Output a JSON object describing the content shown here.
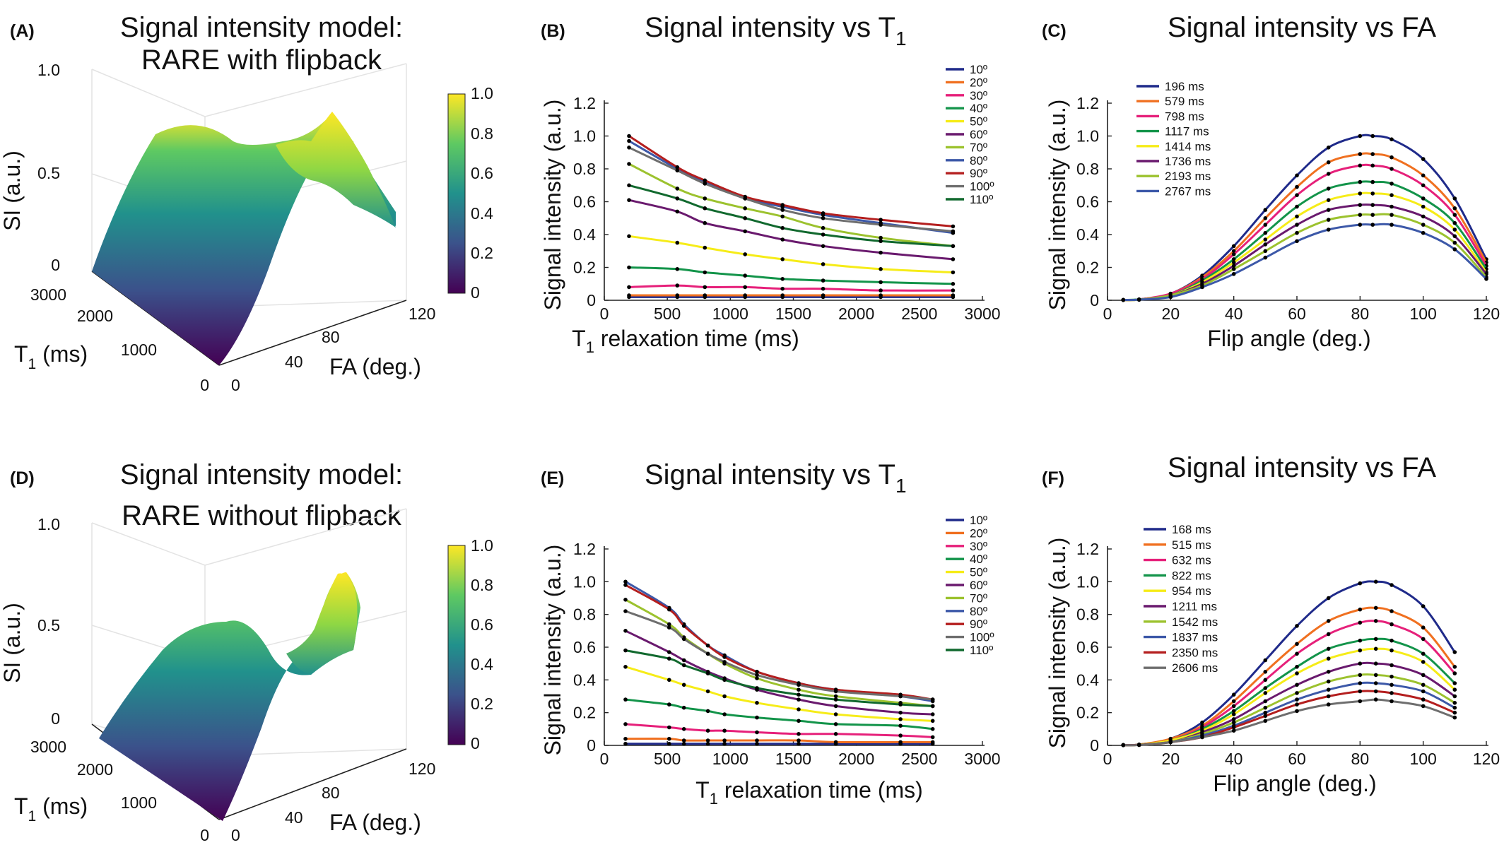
{
  "colors": {
    "deg10": "#1f2a8a",
    "deg20": "#f07020",
    "deg30": "#e6207a",
    "deg40": "#13944a",
    "deg50": "#f6ec18",
    "deg60": "#6a1a6e",
    "deg70": "#9cc22e",
    "deg80": "#3c58a8",
    "deg90": "#b41e1e",
    "deg100": "#6e6e6e",
    "deg110": "#11692e"
  },
  "panels": {
    "A": {
      "label": "(A)",
      "title_line1": "Signal intensity model:",
      "title_line2": "RARE with flipback",
      "zlabel": "SI (a.u.)",
      "ylabel_main": "T",
      "ylabel_sub": "1",
      "ylabel_unit": " (ms)",
      "xlabel": "FA (deg.)",
      "zticks": [
        "0",
        "0.5",
        "1.0"
      ],
      "t1ticks": [
        "0",
        "1000",
        "2000",
        "3000"
      ],
      "faticks": [
        "0",
        "40",
        "80",
        "120"
      ],
      "cbticks": [
        "0",
        "0.2",
        "0.4",
        "0.6",
        "0.8",
        "1.0"
      ]
    },
    "D": {
      "label": "(D)",
      "title_line1": "Signal intensity model:",
      "title_line2": "RARE without flipback",
      "zlabel": "SI (a.u.)",
      "ylabel_main": "T",
      "ylabel_sub": "1",
      "ylabel_unit": " (ms)",
      "xlabel": "FA (deg.)",
      "zticks": [
        "0",
        "0.5",
        "1.0"
      ],
      "t1ticks": [
        "0",
        "1000",
        "2000",
        "3000"
      ],
      "faticks": [
        "0",
        "40",
        "80",
        "120"
      ],
      "cbticks": [
        "0",
        "0.2",
        "0.4",
        "0.6",
        "0.8",
        "1.0"
      ]
    },
    "B": {
      "label": "(B)",
      "title": "Signal intensity vs T",
      "title_sub": "1",
      "xlabel_main": "T",
      "xlabel_sub": "1",
      "xlabel_rest": " relaxation time (ms)",
      "ylabel": "Signal intensity (a.u.)"
    },
    "E": {
      "label": "(E)",
      "title": "Signal intensity vs T",
      "title_sub": "1",
      "xlabel_main": "T",
      "xlabel_sub": "1",
      "xlabel_rest": " relaxation time (ms)",
      "ylabel": "Signal intensity (a.u.)"
    },
    "C": {
      "label": "(C)",
      "title": "Signal intensity vs FA",
      "xlabel": "Flip angle (deg.)",
      "ylabel": "Signal intensity (a.u.)"
    },
    "F": {
      "label": "(F)",
      "title": "Signal intensity vs FA",
      "xlabel": "Flip angle (deg.)",
      "ylabel": "Signal intensity (a.u.)"
    }
  },
  "chart_data": [
    {
      "id": "B",
      "type": "line",
      "xlim": [
        0,
        3000
      ],
      "ylim": [
        0,
        1.2
      ],
      "xticks": [
        0,
        500,
        1000,
        1500,
        2000,
        2500,
        3000
      ],
      "yticks": [
        0,
        0.2,
        0.4,
        0.6,
        0.8,
        1.0,
        1.2
      ],
      "x": [
        196,
        579,
        798,
        1117,
        1414,
        1736,
        2193,
        2767
      ],
      "series": [
        {
          "name": "10º",
          "color": "deg10",
          "values": [
            0.02,
            0.02,
            0.02,
            0.02,
            0.02,
            0.02,
            0.02,
            0.02
          ]
        },
        {
          "name": "20º",
          "color": "deg20",
          "values": [
            0.03,
            0.03,
            0.03,
            0.03,
            0.03,
            0.03,
            0.03,
            0.03
          ]
        },
        {
          "name": "30º",
          "color": "deg30",
          "values": [
            0.08,
            0.09,
            0.08,
            0.08,
            0.07,
            0.07,
            0.06,
            0.06
          ]
        },
        {
          "name": "40º",
          "color": "deg40",
          "values": [
            0.2,
            0.19,
            0.17,
            0.15,
            0.13,
            0.12,
            0.11,
            0.1
          ]
        },
        {
          "name": "50º",
          "color": "deg50",
          "values": [
            0.39,
            0.35,
            0.32,
            0.28,
            0.25,
            0.22,
            0.19,
            0.17
          ]
        },
        {
          "name": "60º",
          "color": "deg60",
          "values": [
            0.61,
            0.54,
            0.47,
            0.42,
            0.37,
            0.33,
            0.29,
            0.25
          ]
        },
        {
          "name": "70º",
          "color": "deg70",
          "values": [
            0.83,
            0.68,
            0.62,
            0.56,
            0.51,
            0.44,
            0.38,
            0.33
          ]
        },
        {
          "name": "80º",
          "color": "deg80",
          "values": [
            0.97,
            0.8,
            0.72,
            0.62,
            0.57,
            0.52,
            0.47,
            0.41
          ]
        },
        {
          "name": "90º",
          "color": "deg90",
          "values": [
            1.0,
            0.81,
            0.73,
            0.63,
            0.58,
            0.53,
            0.49,
            0.45
          ]
        },
        {
          "name": "100º",
          "color": "deg100",
          "values": [
            0.93,
            0.79,
            0.71,
            0.62,
            0.55,
            0.5,
            0.46,
            0.42
          ]
        },
        {
          "name": "110º",
          "color": "deg110",
          "values": [
            0.7,
            0.62,
            0.56,
            0.5,
            0.44,
            0.4,
            0.36,
            0.33
          ]
        }
      ]
    },
    {
      "id": "E",
      "type": "line",
      "xlim": [
        0,
        3000
      ],
      "ylim": [
        0,
        1.2
      ],
      "xticks": [
        0,
        500,
        1000,
        1500,
        2000,
        2500,
        3000
      ],
      "yticks": [
        0,
        0.2,
        0.4,
        0.6,
        0.8,
        1.0,
        1.2
      ],
      "x": [
        168,
        515,
        632,
        822,
        954,
        1211,
        1542,
        1837,
        2350,
        2606
      ],
      "series": [
        {
          "name": "10º",
          "color": "deg10",
          "values": [
            0.01,
            0.01,
            0.01,
            0.01,
            0.01,
            0.01,
            0.01,
            0.01,
            0.01,
            0.01
          ]
        },
        {
          "name": "20º",
          "color": "deg20",
          "values": [
            0.04,
            0.04,
            0.03,
            0.03,
            0.03,
            0.03,
            0.03,
            0.02,
            0.02,
            0.02
          ]
        },
        {
          "name": "30º",
          "color": "deg30",
          "values": [
            0.13,
            0.11,
            0.1,
            0.09,
            0.09,
            0.08,
            0.07,
            0.07,
            0.06,
            0.05
          ]
        },
        {
          "name": "40º",
          "color": "deg40",
          "values": [
            0.28,
            0.25,
            0.23,
            0.21,
            0.19,
            0.17,
            0.15,
            0.13,
            0.12,
            0.1
          ]
        },
        {
          "name": "50º",
          "color": "deg50",
          "values": [
            0.48,
            0.4,
            0.37,
            0.33,
            0.3,
            0.26,
            0.22,
            0.19,
            0.16,
            0.15
          ]
        },
        {
          "name": "60º",
          "color": "deg60",
          "values": [
            0.7,
            0.57,
            0.52,
            0.45,
            0.41,
            0.34,
            0.28,
            0.24,
            0.2,
            0.19
          ]
        },
        {
          "name": "70º",
          "color": "deg70",
          "values": [
            0.89,
            0.74,
            0.66,
            0.56,
            0.5,
            0.41,
            0.34,
            0.3,
            0.26,
            0.24
          ]
        },
        {
          "name": "80º",
          "color": "deg80",
          "values": [
            1.0,
            0.84,
            0.74,
            0.61,
            0.55,
            0.45,
            0.38,
            0.34,
            0.3,
            0.27
          ]
        },
        {
          "name": "90º",
          "color": "deg90",
          "values": [
            0.98,
            0.83,
            0.73,
            0.61,
            0.54,
            0.45,
            0.38,
            0.34,
            0.31,
            0.28
          ]
        },
        {
          "name": "100º",
          "color": "deg100",
          "values": [
            0.82,
            0.72,
            0.65,
            0.56,
            0.51,
            0.43,
            0.37,
            0.33,
            0.3,
            0.28
          ]
        },
        {
          "name": "110º",
          "color": "deg110",
          "values": [
            0.58,
            0.53,
            0.49,
            0.44,
            0.4,
            0.35,
            0.31,
            0.28,
            0.25,
            0.24
          ]
        }
      ]
    },
    {
      "id": "C",
      "type": "line",
      "xlim": [
        0,
        120
      ],
      "ylim": [
        0,
        1.2
      ],
      "xticks": [
        0,
        20,
        40,
        60,
        80,
        100,
        120
      ],
      "yticks": [
        0,
        0.2,
        0.4,
        0.6,
        0.8,
        1.0,
        1.2
      ],
      "x": [
        5,
        10,
        20,
        30,
        40,
        50,
        60,
        70,
        80,
        84,
        90,
        100,
        110,
        120
      ],
      "series": [
        {
          "name": "196 ms",
          "color": "deg10",
          "values": [
            0.002,
            0.005,
            0.04,
            0.15,
            0.33,
            0.55,
            0.76,
            0.93,
            1.0,
            1.0,
            0.98,
            0.86,
            0.62,
            0.25
          ]
        },
        {
          "name": "579 ms",
          "color": "deg20",
          "values": [
            0.002,
            0.005,
            0.04,
            0.14,
            0.3,
            0.5,
            0.69,
            0.84,
            0.89,
            0.89,
            0.87,
            0.76,
            0.56,
            0.23
          ]
        },
        {
          "name": "798 ms",
          "color": "deg30",
          "values": [
            0.002,
            0.005,
            0.04,
            0.13,
            0.28,
            0.46,
            0.64,
            0.77,
            0.82,
            0.82,
            0.8,
            0.7,
            0.52,
            0.21
          ]
        },
        {
          "name": "1117 ms",
          "color": "deg40",
          "values": [
            0.002,
            0.005,
            0.03,
            0.12,
            0.25,
            0.41,
            0.57,
            0.68,
            0.72,
            0.72,
            0.71,
            0.62,
            0.47,
            0.19
          ]
        },
        {
          "name": "1414 ms",
          "color": "deg50",
          "values": [
            0.002,
            0.004,
            0.03,
            0.11,
            0.23,
            0.37,
            0.51,
            0.61,
            0.65,
            0.65,
            0.64,
            0.57,
            0.43,
            0.17
          ]
        },
        {
          "name": "1736 ms",
          "color": "deg60",
          "values": [
            0.002,
            0.004,
            0.03,
            0.1,
            0.21,
            0.34,
            0.46,
            0.55,
            0.58,
            0.58,
            0.57,
            0.51,
            0.39,
            0.16
          ]
        },
        {
          "name": "2193 ms",
          "color": "deg70",
          "values": [
            0.002,
            0.004,
            0.03,
            0.09,
            0.19,
            0.3,
            0.41,
            0.49,
            0.52,
            0.52,
            0.52,
            0.46,
            0.35,
            0.14
          ]
        },
        {
          "name": "2767 ms",
          "color": "deg80",
          "values": [
            0.002,
            0.004,
            0.02,
            0.08,
            0.16,
            0.26,
            0.36,
            0.43,
            0.46,
            0.46,
            0.46,
            0.41,
            0.31,
            0.13
          ]
        }
      ]
    },
    {
      "id": "F",
      "type": "line",
      "xlim": [
        0,
        120
      ],
      "ylim": [
        0,
        1.2
      ],
      "xticks": [
        0,
        20,
        40,
        60,
        80,
        100,
        120
      ],
      "yticks": [
        0,
        0.2,
        0.4,
        0.6,
        0.8,
        1.0,
        1.2
      ],
      "x": [
        5,
        10,
        20,
        30,
        40,
        50,
        60,
        70,
        80,
        85,
        90,
        100,
        110
      ],
      "series": [
        {
          "name": "168 ms",
          "color": "deg10",
          "values": [
            0.002,
            0.005,
            0.04,
            0.14,
            0.31,
            0.52,
            0.73,
            0.9,
            0.99,
            1.0,
            0.98,
            0.85,
            0.57
          ]
        },
        {
          "name": "515 ms",
          "color": "deg20",
          "values": [
            0.002,
            0.005,
            0.04,
            0.12,
            0.27,
            0.45,
            0.62,
            0.76,
            0.83,
            0.84,
            0.82,
            0.72,
            0.48
          ]
        },
        {
          "name": "632 ms",
          "color": "deg30",
          "values": [
            0.002,
            0.004,
            0.03,
            0.11,
            0.24,
            0.4,
            0.56,
            0.68,
            0.75,
            0.76,
            0.74,
            0.65,
            0.44
          ]
        },
        {
          "name": "822 ms",
          "color": "deg40",
          "values": [
            0.002,
            0.004,
            0.03,
            0.1,
            0.21,
            0.35,
            0.48,
            0.59,
            0.64,
            0.65,
            0.64,
            0.56,
            0.38
          ]
        },
        {
          "name": "954 ms",
          "color": "deg50",
          "values": [
            0.002,
            0.004,
            0.03,
            0.09,
            0.19,
            0.32,
            0.44,
            0.53,
            0.58,
            0.59,
            0.58,
            0.51,
            0.34
          ]
        },
        {
          "name": "1211 ms",
          "color": "deg60",
          "values": [
            0.002,
            0.003,
            0.02,
            0.08,
            0.16,
            0.27,
            0.37,
            0.45,
            0.5,
            0.5,
            0.49,
            0.43,
            0.3
          ]
        },
        {
          "name": "1542 ms",
          "color": "deg70",
          "values": [
            0.002,
            0.003,
            0.02,
            0.07,
            0.14,
            0.23,
            0.32,
            0.39,
            0.43,
            0.43,
            0.42,
            0.37,
            0.26
          ]
        },
        {
          "name": "1837 ms",
          "color": "deg80",
          "values": [
            0.002,
            0.003,
            0.02,
            0.06,
            0.12,
            0.2,
            0.28,
            0.34,
            0.38,
            0.38,
            0.37,
            0.33,
            0.23
          ]
        },
        {
          "name": "2350 ms",
          "color": "deg90",
          "values": [
            0.001,
            0.003,
            0.02,
            0.05,
            0.11,
            0.18,
            0.25,
            0.3,
            0.33,
            0.33,
            0.32,
            0.28,
            0.2
          ]
        },
        {
          "name": "2606 ms",
          "color": "deg100",
          "values": [
            0.001,
            0.002,
            0.02,
            0.05,
            0.09,
            0.15,
            0.21,
            0.25,
            0.27,
            0.28,
            0.27,
            0.24,
            0.17
          ]
        }
      ]
    }
  ]
}
